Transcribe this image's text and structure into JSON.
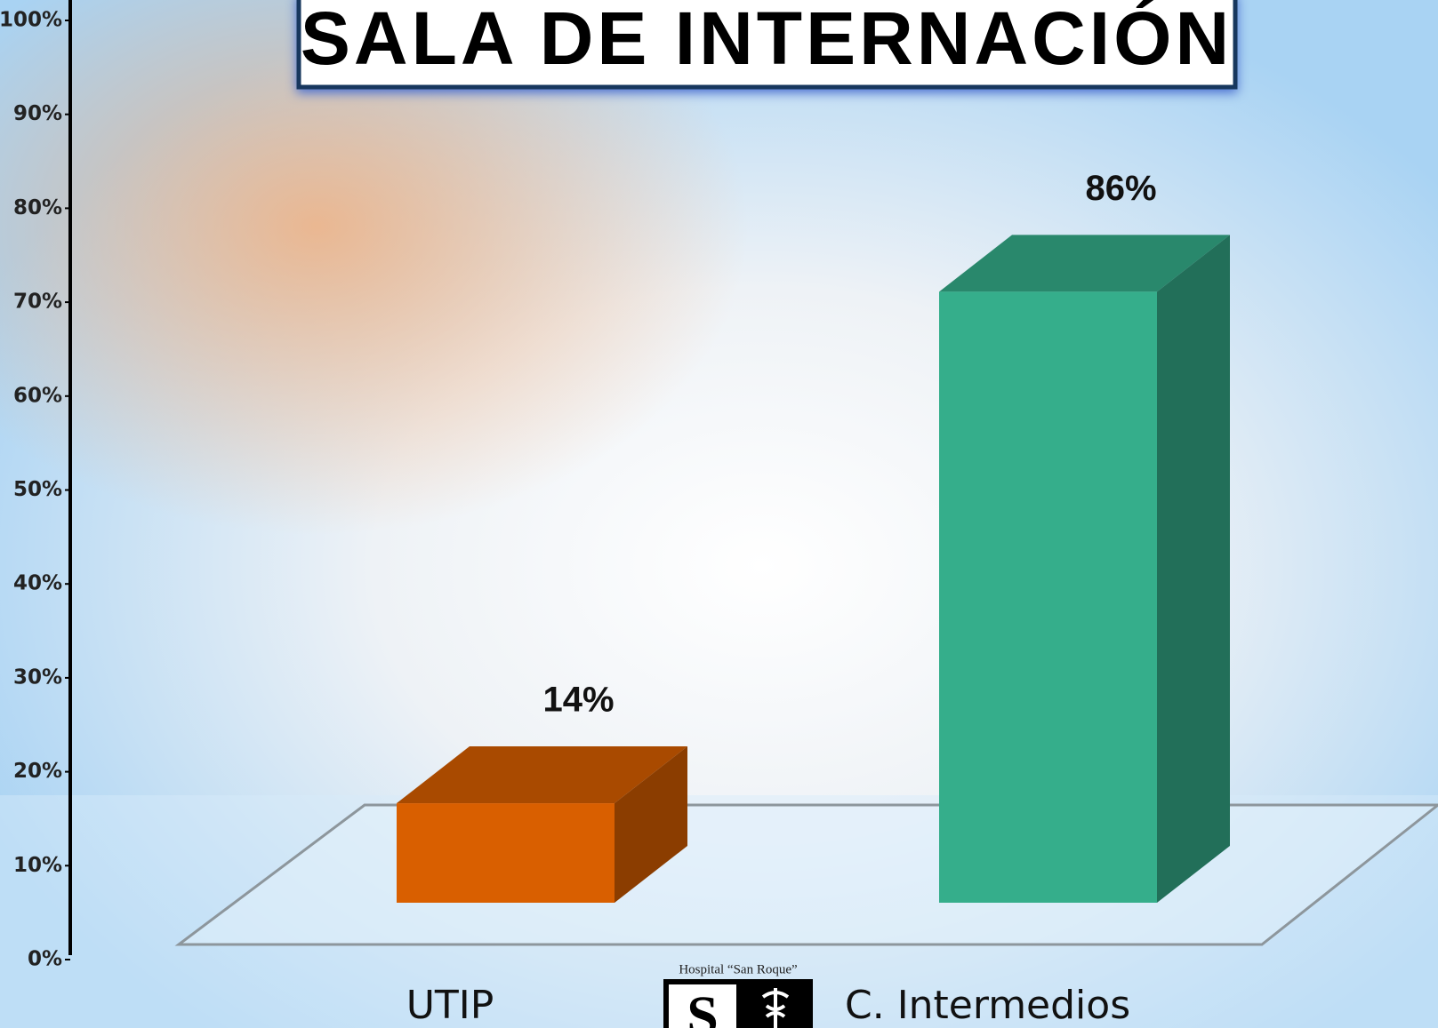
{
  "chart_data": {
    "type": "bar3d",
    "title": "SALA DE INTERNACIÓN",
    "categories": [
      "UTIP",
      "C. Intermedios"
    ],
    "values": [
      14,
      86
    ],
    "value_labels": [
      "14%",
      "86%"
    ],
    "colors": [
      "#d95f00",
      "#35ae8b"
    ],
    "ylim": [
      0,
      100
    ],
    "yticks": [
      {
        "value": 0,
        "label": "0%"
      },
      {
        "value": 10,
        "label": "10%"
      },
      {
        "value": 20,
        "label": "20%"
      },
      {
        "value": 30,
        "label": "30%"
      },
      {
        "value": 40,
        "label": "40%"
      },
      {
        "value": 50,
        "label": "50%"
      },
      {
        "value": 60,
        "label": "60%"
      },
      {
        "value": 70,
        "label": "70%"
      },
      {
        "value": 80,
        "label": "80%"
      },
      {
        "value": 90,
        "label": "90%"
      },
      {
        "value": 100,
        "label": "100%"
      }
    ],
    "logo_caption": "Hospital “San Roque”"
  }
}
